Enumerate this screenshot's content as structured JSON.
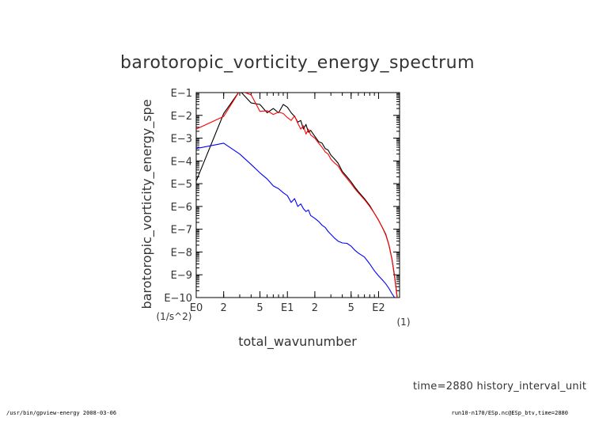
{
  "chart_data": {
    "type": "line",
    "title": "barotoropic_vorticity_energy_spectrum",
    "xlabel": "total_wavunumber",
    "xunit": "(1)",
    "ylabel": "barotoropic_vorticity_energy_spe",
    "yunit": "(1/s^2)",
    "xscale": "log",
    "yscale": "log",
    "xlim": [
      1,
      170
    ],
    "ylim": [
      1e-10,
      0.1
    ],
    "xticks": [
      {
        "value": 1,
        "label": "E0"
      },
      {
        "value": 2,
        "label": "2"
      },
      {
        "value": 5,
        "label": "5"
      },
      {
        "value": 10,
        "label": "E1"
      },
      {
        "value": 20,
        "label": "2"
      },
      {
        "value": 50,
        "label": "5"
      },
      {
        "value": 100,
        "label": "E2"
      }
    ],
    "yticks": [
      {
        "value": 0.1,
        "label": "E−1"
      },
      {
        "value": 0.01,
        "label": "E−2"
      },
      {
        "value": 0.001,
        "label": "E−3"
      },
      {
        "value": 0.0001,
        "label": "E−4"
      },
      {
        "value": 1e-05,
        "label": "E−5"
      },
      {
        "value": 1e-06,
        "label": "E−6"
      },
      {
        "value": 1e-07,
        "label": "E−7"
      },
      {
        "value": 1e-08,
        "label": "E−8"
      },
      {
        "value": 1e-09,
        "label": "E−9"
      },
      {
        "value": 1e-10,
        "label": "E−10"
      }
    ],
    "grid": false,
    "series": [
      {
        "color": "#000000",
        "points": [
          [
            1,
            1.3e-05
          ],
          [
            2,
            0.012
          ],
          [
            3,
            0.12
          ],
          [
            4,
            0.035
          ],
          [
            5,
            0.03
          ],
          [
            6,
            0.013
          ],
          [
            7,
            0.02
          ],
          [
            8,
            0.013
          ],
          [
            9,
            0.03
          ],
          [
            10,
            0.023
          ],
          [
            11,
            0.013
          ],
          [
            12,
            0.009
          ],
          [
            13,
            0.005
          ],
          [
            14,
            0.006
          ],
          [
            15,
            0.0025
          ],
          [
            16,
            0.004
          ],
          [
            17,
            0.0018
          ],
          [
            18,
            0.0022
          ],
          [
            20,
            0.0012
          ],
          [
            22,
            0.0007
          ],
          [
            24,
            0.0006
          ],
          [
            26,
            0.00035
          ],
          [
            28,
            0.0003
          ],
          [
            30,
            0.00018
          ],
          [
            33,
            0.00012
          ],
          [
            36,
            8e-05
          ],
          [
            40,
            3.5e-05
          ],
          [
            45,
            2e-05
          ],
          [
            50,
            1.2e-05
          ],
          [
            55,
            7e-06
          ],
          [
            60,
            4.5e-06
          ],
          [
            70,
            2.2e-06
          ],
          [
            80,
            1.1e-06
          ],
          [
            90,
            5e-07
          ],
          [
            100,
            2.5e-07
          ],
          [
            110,
            1.2e-07
          ],
          [
            120,
            6e-08
          ],
          [
            130,
            2e-08
          ],
          [
            140,
            5e-09
          ],
          [
            150,
            9e-10
          ],
          [
            160,
            1e-10
          ]
        ]
      },
      {
        "color": "#ff0000",
        "points": [
          [
            1,
            0.0025
          ],
          [
            2,
            0.009
          ],
          [
            3,
            0.12
          ],
          [
            4,
            0.08
          ],
          [
            5,
            0.015
          ],
          [
            6,
            0.016
          ],
          [
            7,
            0.011
          ],
          [
            8,
            0.014
          ],
          [
            9,
            0.012
          ],
          [
            10,
            0.008
          ],
          [
            11,
            0.006
          ],
          [
            12,
            0.0095
          ],
          [
            13,
            0.0045
          ],
          [
            14,
            0.0025
          ],
          [
            15,
            0.0035
          ],
          [
            16,
            0.0015
          ],
          [
            17,
            0.0025
          ],
          [
            18,
            0.0014
          ],
          [
            20,
            0.001
          ],
          [
            22,
            0.0006
          ],
          [
            24,
            0.0004
          ],
          [
            26,
            0.00025
          ],
          [
            28,
            0.0002
          ],
          [
            30,
            0.00012
          ],
          [
            33,
            8e-05
          ],
          [
            36,
            6e-05
          ],
          [
            40,
            3e-05
          ],
          [
            45,
            1.7e-05
          ],
          [
            50,
            1e-05
          ],
          [
            55,
            6e-06
          ],
          [
            60,
            4e-06
          ],
          [
            70,
            2e-06
          ],
          [
            80,
            1e-06
          ],
          [
            90,
            5e-07
          ],
          [
            100,
            2.5e-07
          ],
          [
            110,
            1.2e-07
          ],
          [
            120,
            5.5e-08
          ],
          [
            130,
            2e-08
          ],
          [
            140,
            5e-09
          ],
          [
            150,
            8e-10
          ],
          [
            160,
            1e-10
          ]
        ]
      },
      {
        "color": "#0000ff",
        "points": [
          [
            1,
            0.00035
          ],
          [
            2,
            0.0006
          ],
          [
            3,
            0.0002
          ],
          [
            4,
            7e-05
          ],
          [
            5,
            3e-05
          ],
          [
            6,
            1.6e-05
          ],
          [
            7,
            8e-06
          ],
          [
            8,
            6e-06
          ],
          [
            9,
            4e-06
          ],
          [
            10,
            3e-06
          ],
          [
            11,
            1.5e-06
          ],
          [
            12,
            2.2e-06
          ],
          [
            13,
            1e-06
          ],
          [
            14,
            1.3e-06
          ],
          [
            15,
            8e-07
          ],
          [
            16,
            6e-07
          ],
          [
            17,
            7e-07
          ],
          [
            18,
            4e-07
          ],
          [
            20,
            3e-07
          ],
          [
            22,
            2.2e-07
          ],
          [
            24,
            1.5e-07
          ],
          [
            26,
            1.2e-07
          ],
          [
            28,
            8e-08
          ],
          [
            30,
            6e-08
          ],
          [
            33,
            4e-08
          ],
          [
            36,
            3e-08
          ],
          [
            40,
            2.5e-08
          ],
          [
            45,
            2.4e-08
          ],
          [
            50,
            1.8e-08
          ],
          [
            55,
            1.2e-08
          ],
          [
            60,
            9e-09
          ],
          [
            70,
            6e-09
          ],
          [
            80,
            3e-09
          ],
          [
            90,
            1.5e-09
          ],
          [
            100,
            9e-10
          ],
          [
            110,
            6e-10
          ],
          [
            120,
            4e-10
          ],
          [
            130,
            2.5e-10
          ],
          [
            140,
            1.5e-10
          ],
          [
            150,
            1e-10
          ]
        ]
      }
    ]
  },
  "time_info": "time=2880 history_interval_unit",
  "footer_left": "/usr/bin/gpview-energy  2008-03-06",
  "footer_right": "run10-n170/ESp.nc@ESp_btv,time=2880"
}
